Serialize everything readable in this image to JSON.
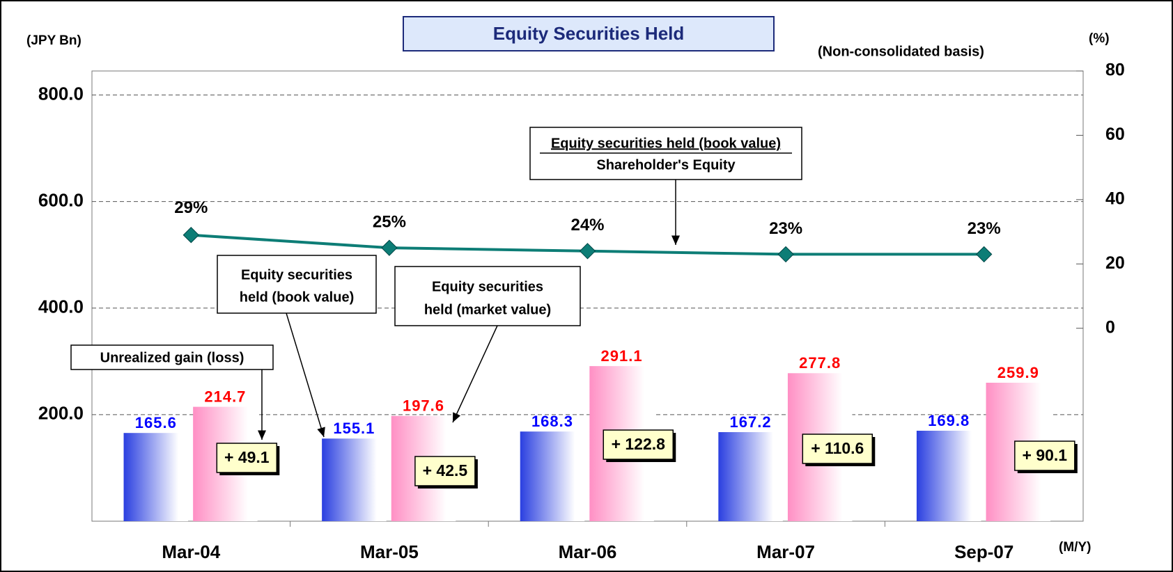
{
  "chart_data": {
    "type": "bar",
    "title": "Equity Securities Held",
    "y_label": "(JPY Bn)",
    "y2_label": "(%)",
    "subtitle": "(Non-consolidated basis)",
    "x_label": "(M/Y)",
    "categories": [
      "Mar-04",
      "Mar-05",
      "Mar-06",
      "Mar-07",
      "Sep-07"
    ],
    "series": [
      {
        "type": "bar",
        "color": "#2a3fe0",
        "label_color": "#0000ff",
        "values": [
          165.6,
          155.1,
          168.3,
          167.2,
          169.8
        ]
      },
      {
        "type": "bar",
        "color": "#ff8fc4",
        "label_color": "#ff0000",
        "values": [
          214.7,
          197.6,
          291.1,
          277.8,
          259.9
        ]
      },
      {
        "type": "line",
        "axis": "y2",
        "color": "#0d7d76",
        "values": [
          29,
          25,
          24,
          23,
          23
        ],
        "value_labels": [
          "29%",
          "25%",
          "24%",
          "23%",
          "23%"
        ]
      }
    ],
    "gain_labels": [
      "+ 49.1",
      "+ 42.5",
      "+ 122.8",
      "+ 110.6",
      "+ 90.1"
    ],
    "annotations": {
      "gain": "Unrealized gain (loss)",
      "book": [
        "Equity securities",
        "held (book value)"
      ],
      "market": [
        "Equity securities",
        "held (market value)"
      ],
      "ratio": [
        "Equity securities held (book value)",
        "Shareholder's Equity"
      ]
    },
    "ylim": [
      0,
      845
    ],
    "yticks": [
      {
        "value": 200,
        "label": "200.0"
      },
      {
        "value": 400,
        "label": "400.0"
      },
      {
        "value": 600,
        "label": "600.0"
      },
      {
        "value": 800,
        "label": "800.0"
      }
    ],
    "y2lim": [
      -60,
      80
    ],
    "y2ticks": [
      0,
      20,
      40,
      60,
      80
    ],
    "grid": true
  }
}
